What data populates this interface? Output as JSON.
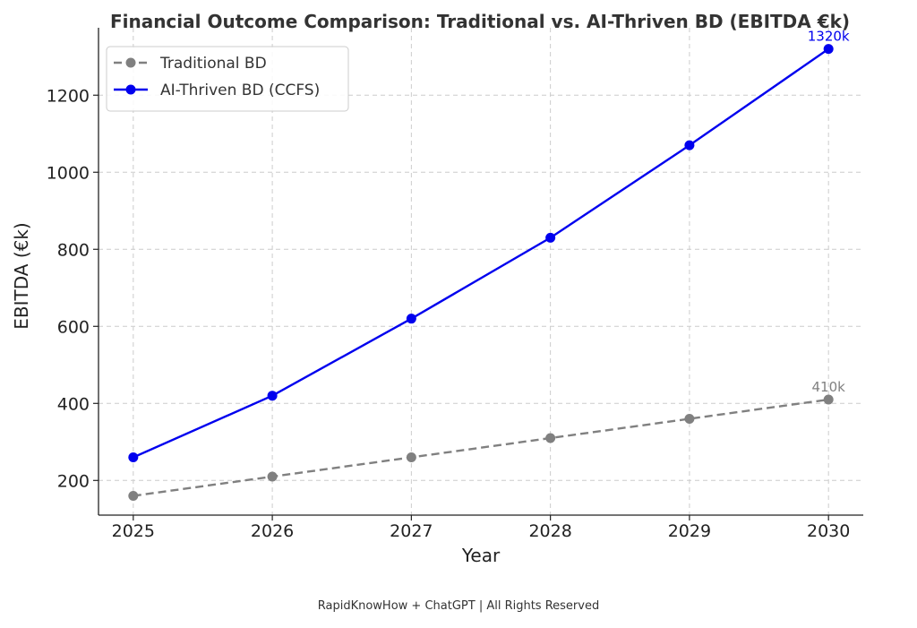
{
  "chart_data": {
    "type": "line",
    "title": "Financial Outcome Comparison: Traditional vs. AI-Thriven BD (EBITDA €k)",
    "xlabel": "Year",
    "ylabel": "EBITDA (€k)",
    "x": [
      2025,
      2026,
      2027,
      2028,
      2029,
      2030
    ],
    "x_tick_labels": [
      "2025",
      "2026",
      "2027",
      "2028",
      "2029",
      "2030"
    ],
    "y_ticks": [
      200,
      400,
      600,
      800,
      1000,
      1200
    ],
    "ylim": [
      110,
      1375
    ],
    "xlim": [
      2024.75,
      2030.25
    ],
    "grid": true,
    "legend_position": "top-left",
    "series": [
      {
        "name": "Traditional BD",
        "values": [
          160,
          210,
          260,
          310,
          360,
          410
        ],
        "color": "#808080",
        "line_style": "dashed",
        "marker": "circle",
        "end_annotation": "410k"
      },
      {
        "name": "AI-Thriven BD (CCFS)",
        "values": [
          260,
          420,
          620,
          830,
          1070,
          1320
        ],
        "color": "#0000ee",
        "line_style": "solid",
        "marker": "circle",
        "end_annotation": "1320k"
      }
    ]
  },
  "footer": "RapidKnowHow + ChatGPT | All Rights Reserved"
}
